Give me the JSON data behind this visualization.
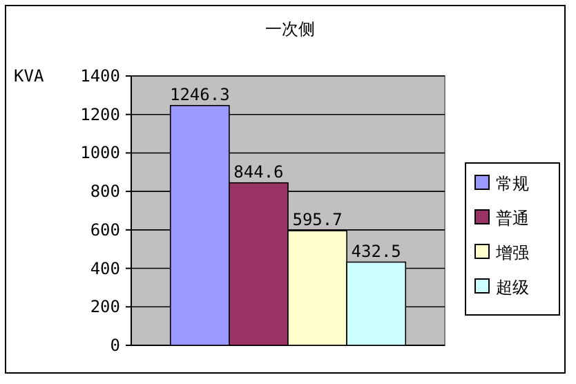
{
  "chart_data": {
    "type": "bar",
    "title": "一次侧",
    "ylabel": "KVA",
    "categories": [
      null
    ],
    "series": [
      {
        "name": "常规",
        "color": "#9999ff",
        "values": [
          1246.3
        ]
      },
      {
        "name": "普通",
        "color": "#993366",
        "values": [
          844.6
        ]
      },
      {
        "name": "增强",
        "color": "#ffffcc",
        "values": [
          595.7
        ]
      },
      {
        "name": "超级",
        "color": "#ccffff",
        "values": [
          432.5
        ]
      }
    ],
    "ylim": [
      0,
      1400
    ],
    "yticks": [
      0,
      200,
      400,
      600,
      800,
      1000,
      1200,
      1400
    ],
    "grid": "y",
    "legend": "right",
    "data_labels": true
  }
}
